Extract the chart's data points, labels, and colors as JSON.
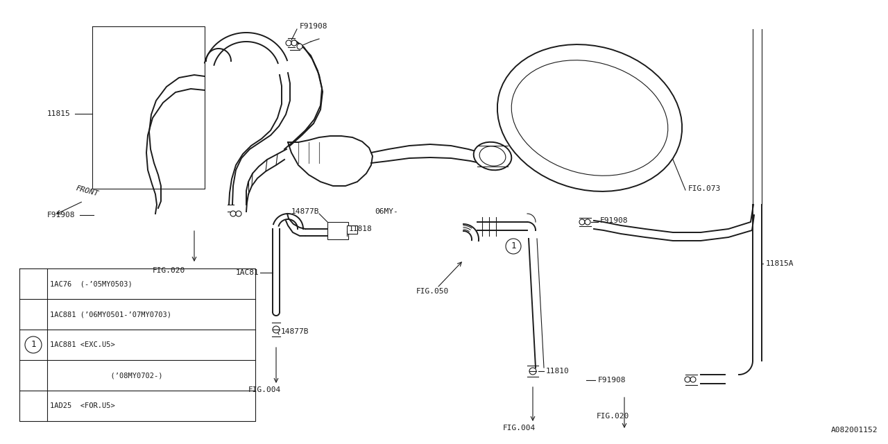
{
  "bg_color": "#ffffff",
  "line_color": "#1a1a1a",
  "fig_width": 12.8,
  "fig_height": 6.4,
  "dpi": 100,
  "ref_code": "A082001152",
  "legend_rows": [
    "1AC76  (-’05MY0503)",
    "1AC881 (’06MY0501-’07MY0703)",
    "1AC881 <EXC.U5>",
    "              (’08MY0702-)",
    "1AD25  <FOR.U5>"
  ]
}
